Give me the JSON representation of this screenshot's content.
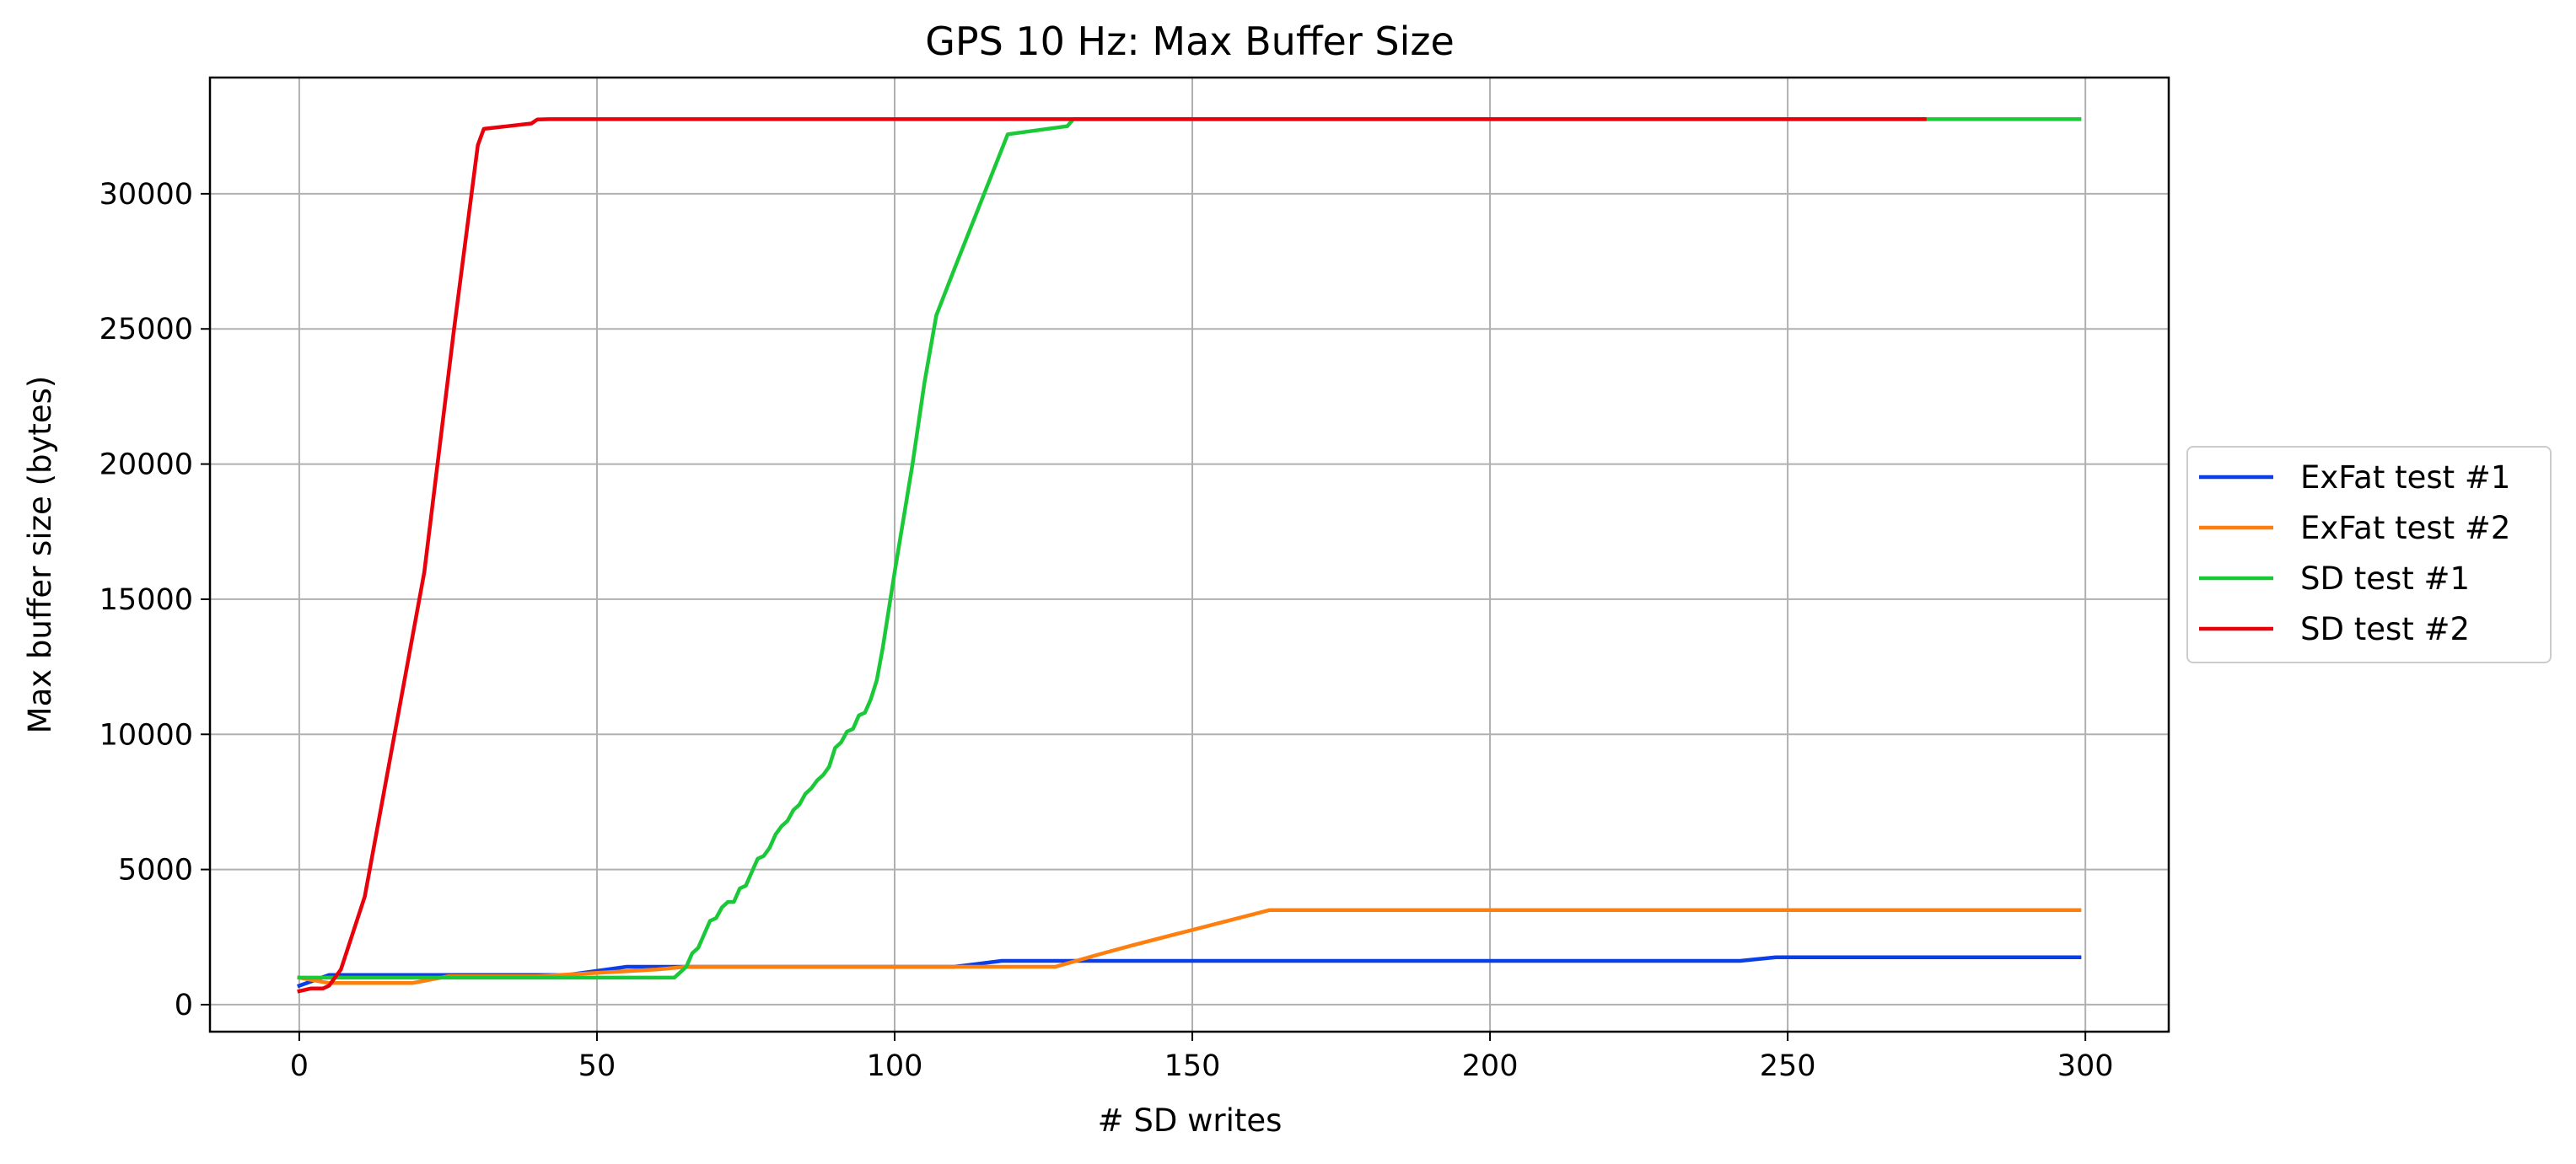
{
  "chart_data": {
    "type": "line",
    "title": "GPS 10 Hz: Max Buffer Size",
    "xlabel": "# SD writes",
    "ylabel": "Max buffer size (bytes)",
    "xlim": [
      -15,
      314
    ],
    "ylim": [
      -1000,
      34300
    ],
    "xticks": [
      0,
      50,
      100,
      150,
      200,
      250,
      300
    ],
    "yticks": [
      0,
      5000,
      10000,
      15000,
      20000,
      25000,
      30000
    ],
    "grid": true,
    "legend_position": "right",
    "series": [
      {
        "name": "ExFat test #1",
        "color": "#0a3ee8",
        "x": [
          0,
          5,
          20,
          45,
          55,
          60,
          110,
          118,
          125,
          135,
          242,
          248,
          299
        ],
        "y": [
          700,
          1100,
          1100,
          1100,
          1400,
          1400,
          1400,
          1620,
          1620,
          1620,
          1620,
          1750,
          1750
        ]
      },
      {
        "name": "ExFat test #2",
        "color": "#ff7f0e",
        "x": [
          0,
          5,
          10,
          19,
          25,
          40,
          60,
          65,
          100,
          127,
          135,
          140,
          163,
          299
        ],
        "y": [
          1000,
          800,
          800,
          800,
          1050,
          1050,
          1300,
          1400,
          1400,
          1400,
          1900,
          2200,
          3500,
          3500
        ]
      },
      {
        "name": "SD test #1",
        "color": "#1ac938",
        "x": [
          0,
          10,
          25,
          50,
          63,
          65,
          66,
          67,
          68,
          69,
          70,
          71,
          72,
          73,
          74,
          75,
          76,
          77,
          78,
          79,
          80,
          81,
          82,
          83,
          84,
          85,
          86,
          87,
          88,
          89,
          90,
          91,
          92,
          93,
          94,
          95,
          96,
          97,
          98,
          100,
          103,
          105,
          107,
          110,
          119,
          129,
          130,
          140,
          200,
          273,
          299
        ],
        "y": [
          1000,
          1000,
          1000,
          1000,
          1000,
          1400,
          1900,
          2100,
          2600,
          3100,
          3200,
          3600,
          3800,
          3800,
          4300,
          4400,
          4900,
          5400,
          5500,
          5800,
          6300,
          6600,
          6800,
          7200,
          7400,
          7800,
          8000,
          8300,
          8500,
          8800,
          9500,
          9700,
          10100,
          10200,
          10700,
          10800,
          11300,
          12000,
          13200,
          16000,
          20000,
          23000,
          25500,
          27200,
          32200,
          32500,
          32760,
          32760,
          32760,
          32760,
          32760
        ]
      },
      {
        "name": "SD test #2",
        "color": "#e8000b",
        "x": [
          0,
          2,
          4,
          5,
          7,
          11,
          16,
          21,
          26,
          30,
          31,
          35,
          39,
          40,
          42,
          50,
          100,
          200,
          273
        ],
        "y": [
          500,
          600,
          600,
          700,
          1300,
          4000,
          10000,
          16000,
          25000,
          31800,
          32400,
          32500,
          32600,
          32750,
          32760,
          32760,
          32760,
          32760,
          32760
        ]
      }
    ]
  }
}
